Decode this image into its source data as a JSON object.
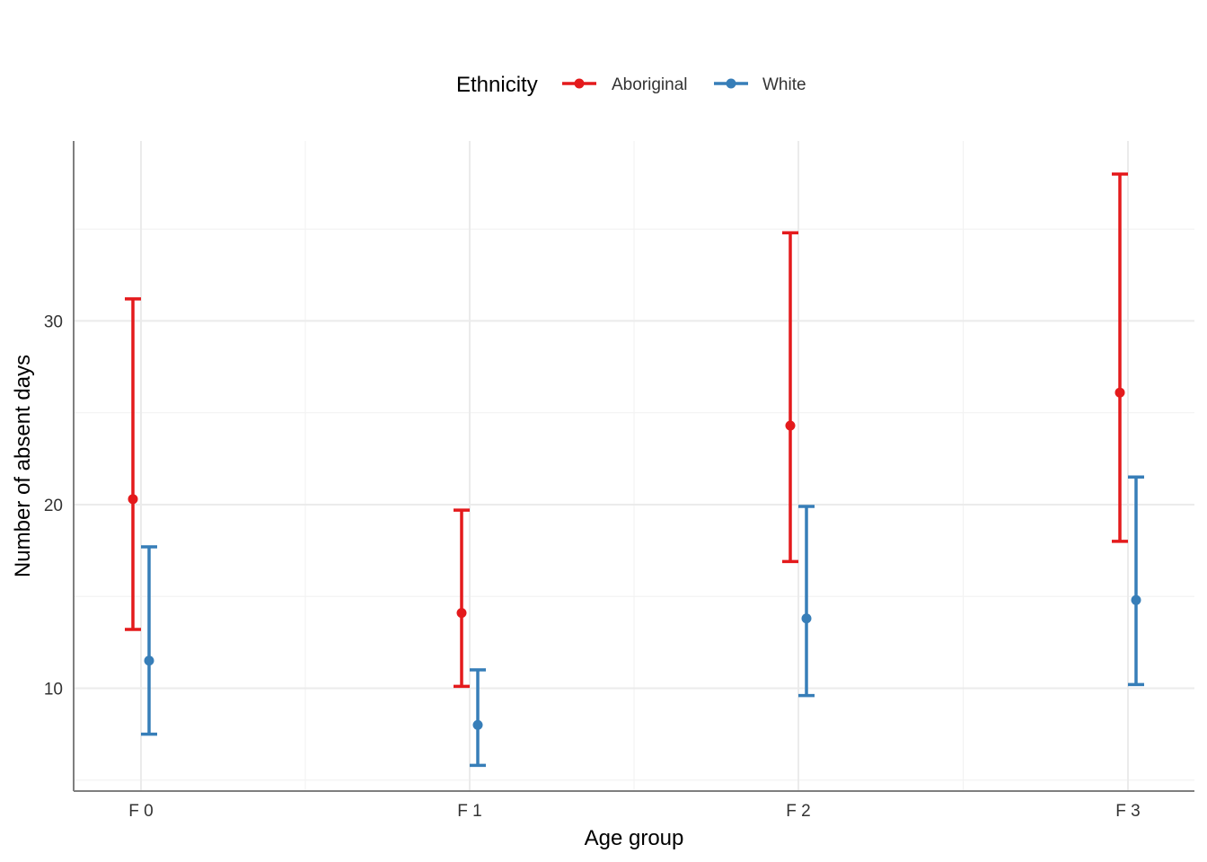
{
  "chart_data": {
    "type": "errorbar",
    "title": "",
    "xlabel": "Age group",
    "ylabel": "Number of absent days",
    "categories": [
      "F 0",
      "F 1",
      "F 2",
      "F 3"
    ],
    "y_ticks": [
      10,
      20,
      30
    ],
    "ylim": [
      4.4,
      39.8
    ],
    "grid": true,
    "legend": {
      "title": "Ethnicity",
      "position": "top"
    },
    "series": [
      {
        "name": "Aboriginal",
        "color": "#e41a1c",
        "values": [
          20.3,
          14.1,
          24.3,
          26.1
        ],
        "lower": [
          13.2,
          10.1,
          16.9,
          18.0
        ],
        "upper": [
          31.2,
          19.7,
          34.8,
          38.0
        ]
      },
      {
        "name": "White",
        "color": "#377eb8",
        "values": [
          11.5,
          8.0,
          13.8,
          14.8
        ],
        "lower": [
          7.5,
          5.8,
          9.6,
          10.2
        ],
        "upper": [
          17.7,
          11.0,
          19.9,
          21.5
        ]
      }
    ]
  }
}
